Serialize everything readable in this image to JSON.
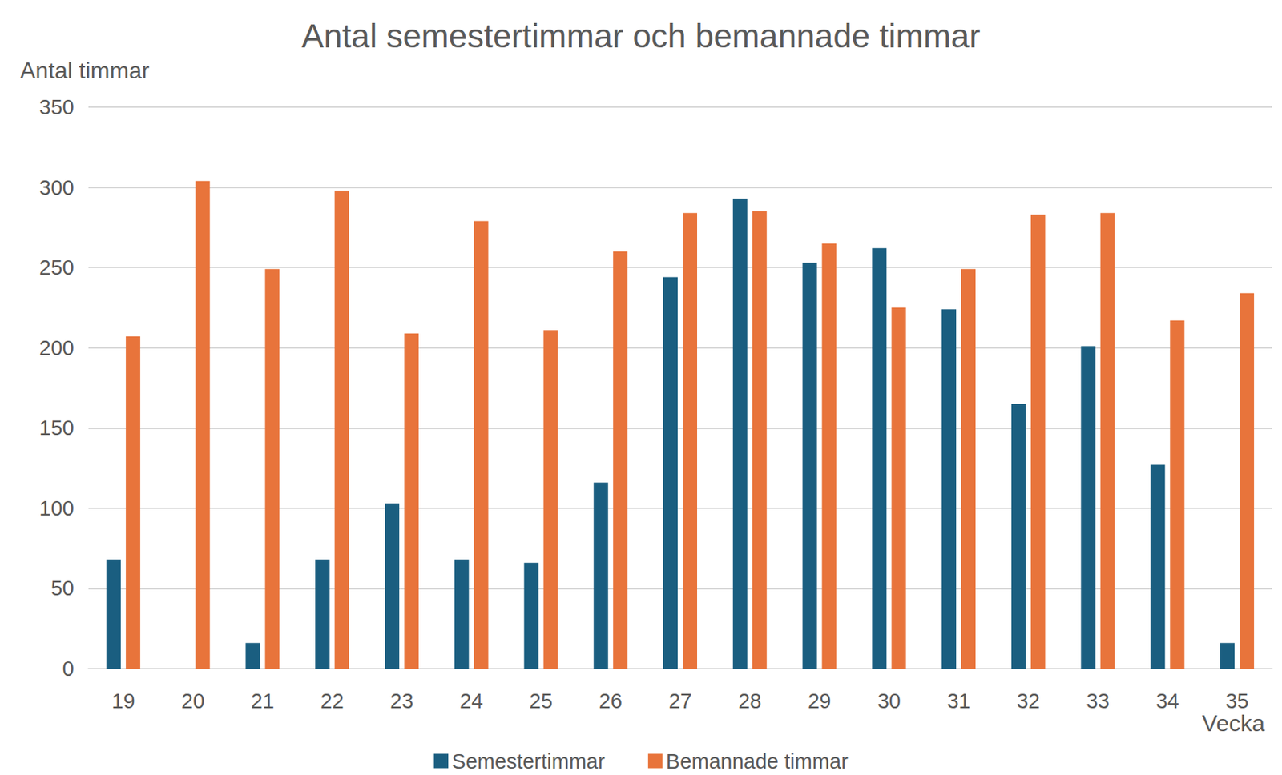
{
  "chart_data": {
    "type": "bar",
    "title": "Antal semestertimmar och bemannade timmar",
    "x_label": "Vecka",
    "y_label": "Antal timmar",
    "categories": [
      "19",
      "20",
      "21",
      "22",
      "23",
      "24",
      "25",
      "26",
      "27",
      "28",
      "29",
      "30",
      "31",
      "32",
      "33",
      "34",
      "35"
    ],
    "series": [
      {
        "name": "Semestertimmar",
        "color": "#1a5e80",
        "values": [
          68,
          0,
          16,
          68,
          103,
          68,
          66,
          116,
          244,
          293,
          253,
          262,
          224,
          165,
          201,
          127,
          16
        ]
      },
      {
        "name": "Bemannade timmar",
        "color": "#e8743b",
        "values": [
          207,
          304,
          249,
          298,
          209,
          279,
          211,
          260,
          284,
          285,
          265,
          225,
          249,
          283,
          284,
          217,
          234
        ]
      }
    ],
    "ylim": [
      0,
      350
    ],
    "yticks": [
      0,
      50,
      100,
      150,
      200,
      250,
      300,
      350
    ],
    "grid": true,
    "legend": "bottom"
  }
}
